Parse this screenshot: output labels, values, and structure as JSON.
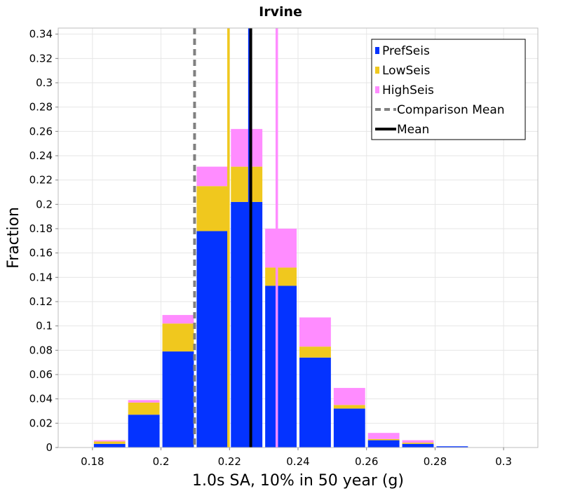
{
  "chart_data": {
    "type": "bar",
    "stacked": true,
    "title": "Irvine",
    "xlabel": "1.0s SA, 10% in 50 year (g)",
    "ylabel": "Fraction",
    "xlim": [
      0.17,
      0.31
    ],
    "ylim": [
      0,
      0.345
    ],
    "xticks": [
      0.18,
      0.2,
      0.22,
      0.24,
      0.26,
      0.28,
      0.3
    ],
    "xtick_labels": [
      "0.18",
      "0.2",
      "0.22",
      "0.24",
      "0.26",
      "0.28",
      "0.3"
    ],
    "yticks": [
      0,
      0.02,
      0.04,
      0.06,
      0.08,
      0.1,
      0.12,
      0.14,
      0.16,
      0.18,
      0.2,
      0.22,
      0.24,
      0.26,
      0.28,
      0.3,
      0.32,
      0.34
    ],
    "ytick_labels": [
      "0",
      "0.02",
      "0.04",
      "0.06",
      "0.08",
      "0.1",
      "0.12",
      "0.14",
      "0.16",
      "0.18",
      "0.2",
      "0.22",
      "0.24",
      "0.26",
      "0.28",
      "0.3",
      "0.32",
      "0.34"
    ],
    "bin_width": 0.01,
    "x": [
      0.175,
      0.185,
      0.195,
      0.205,
      0.215,
      0.225,
      0.235,
      0.245,
      0.255,
      0.265,
      0.275,
      0.285,
      0.295,
      0.305
    ],
    "series": [
      {
        "name": "PrefSeis",
        "color": "#0433ff",
        "values": [
          0.0,
          0.003,
          0.027,
          0.079,
          0.178,
          0.202,
          0.133,
          0.074,
          0.032,
          0.006,
          0.003,
          0.001,
          0.0,
          0.0
        ]
      },
      {
        "name": "LowSeis",
        "color": "#f0c81e",
        "values": [
          0.0,
          0.002,
          0.01,
          0.023,
          0.037,
          0.029,
          0.015,
          0.009,
          0.003,
          0.001,
          0.001,
          0.0,
          0.0,
          0.0
        ]
      },
      {
        "name": "HighSeis",
        "color": "#ff8cff",
        "values": [
          0.0,
          0.001,
          0.002,
          0.007,
          0.016,
          0.031,
          0.032,
          0.024,
          0.014,
          0.005,
          0.002,
          0.0,
          0.0,
          0.0
        ]
      }
    ],
    "vertical_lines": [
      {
        "name": "PrefSeis mean",
        "x": 0.2258,
        "color": "#0433ff",
        "style": "solid"
      },
      {
        "name": "LowSeis mean",
        "x": 0.2197,
        "color": "#f0c81e",
        "style": "solid"
      },
      {
        "name": "HighSeis mean",
        "x": 0.2338,
        "color": "#ff8cff",
        "style": "solid"
      },
      {
        "name": "Comparison Mean",
        "x": 0.2098,
        "color": "#808080",
        "style": "dashed"
      },
      {
        "name": "Mean",
        "x": 0.2262,
        "color": "#000000",
        "style": "solid"
      }
    ],
    "legend": {
      "position": "top-right",
      "items": [
        {
          "label": "PrefSeis",
          "color": "#0433ff",
          "kind": "bar"
        },
        {
          "label": "LowSeis",
          "color": "#f0c81e",
          "kind": "bar"
        },
        {
          "label": "HighSeis",
          "color": "#ff8cff",
          "kind": "bar"
        },
        {
          "label": "Comparison Mean",
          "color": "#808080",
          "kind": "dashed-line"
        },
        {
          "label": "Mean",
          "color": "#000000",
          "kind": "line"
        }
      ]
    },
    "grid": true
  }
}
